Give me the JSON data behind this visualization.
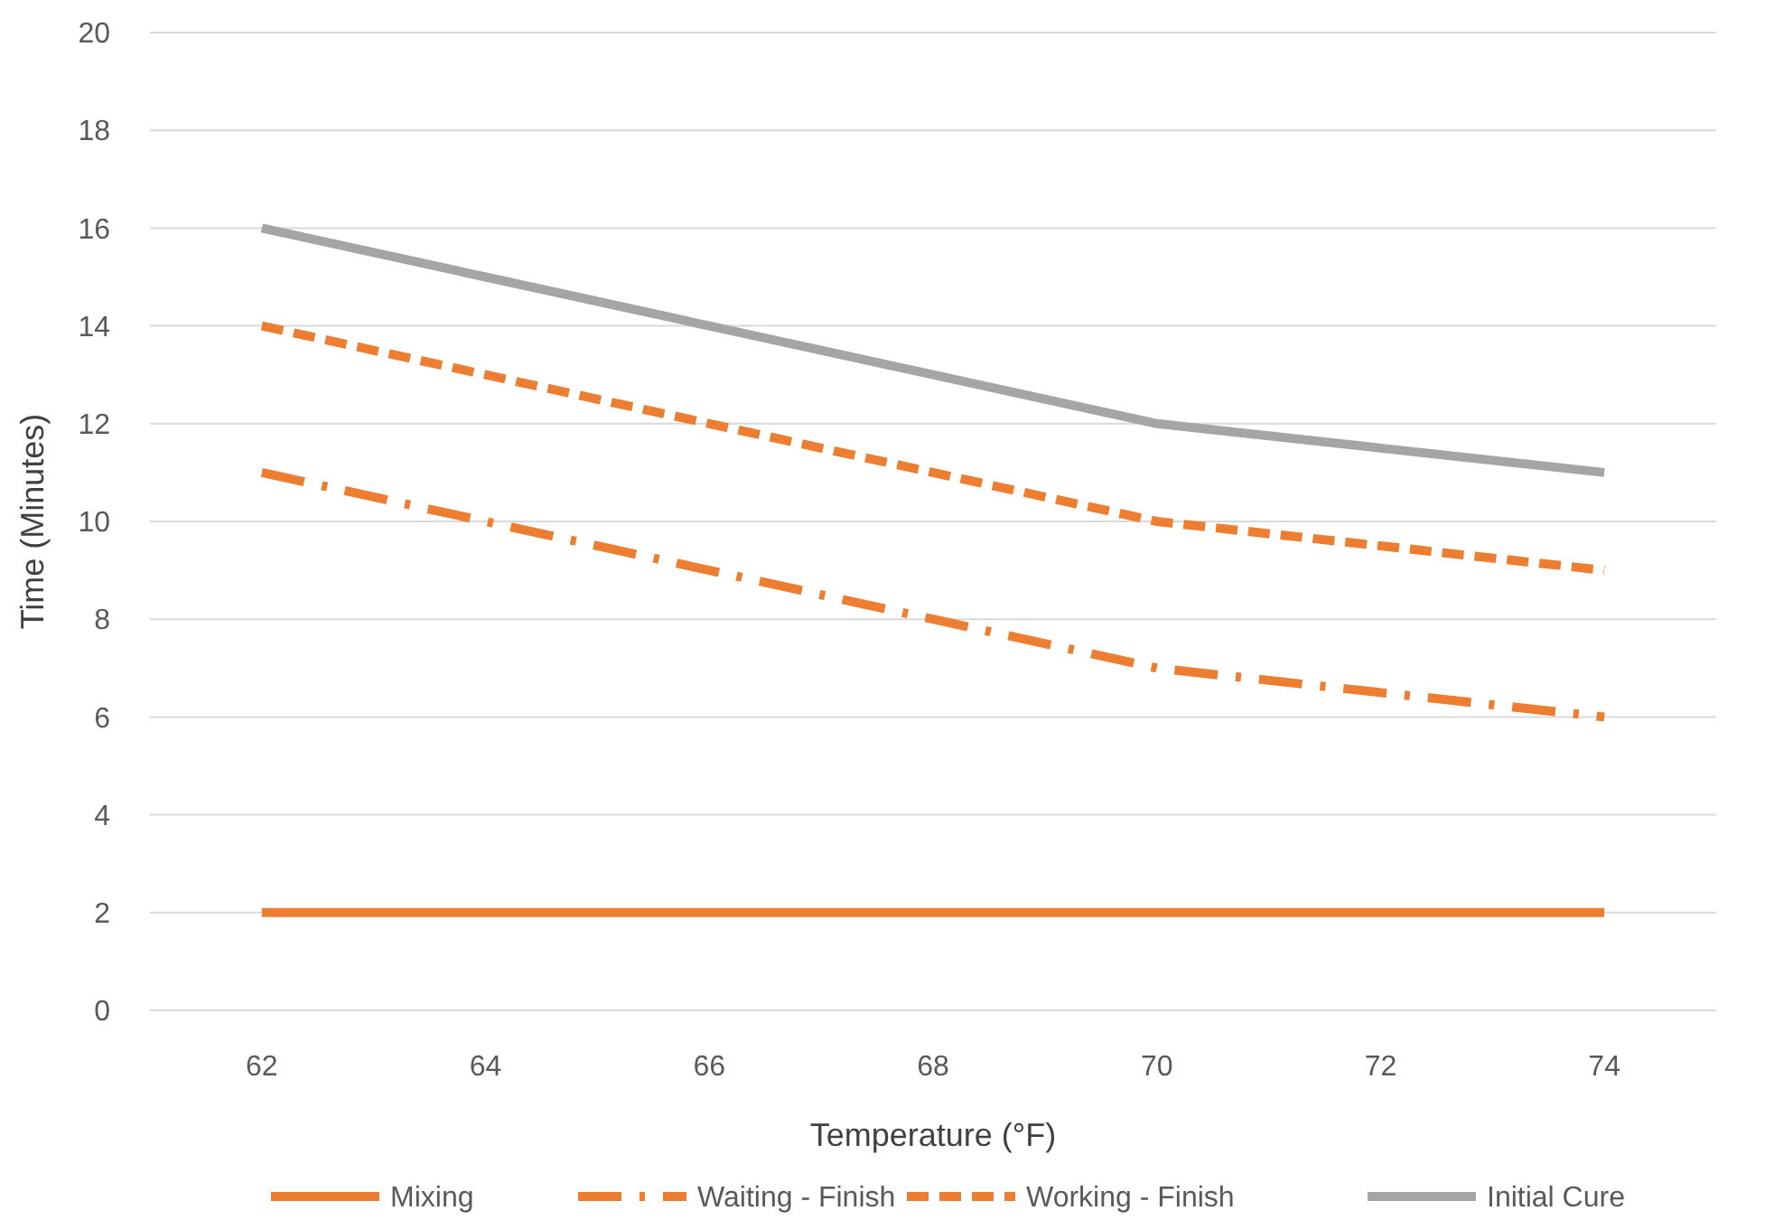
{
  "chart_data": {
    "type": "line",
    "xlabel": "Temperature (°F)",
    "ylabel": "Time (Minutes)",
    "categories": [
      "62",
      "64",
      "66",
      "68",
      "70",
      "72",
      "74"
    ],
    "series": [
      {
        "name": "Mixing",
        "color": "#ed7d31",
        "line_style": "solid",
        "values": [
          2,
          2,
          2,
          2,
          2,
          2,
          2
        ]
      },
      {
        "name": "Waiting - Finish",
        "color": "#ed7d31",
        "line_style": "dashdot",
        "values": [
          11,
          10,
          9,
          8,
          7,
          6.5,
          6
        ]
      },
      {
        "name": "Working - Finish",
        "color": "#ed7d31",
        "line_style": "dashed",
        "values": [
          14,
          13,
          12,
          11,
          10,
          9.5,
          9
        ]
      },
      {
        "name": "Initial Cure",
        "color": "#a5a5a5",
        "line_style": "solid",
        "values": [
          16,
          15,
          14,
          13,
          12,
          11.5,
          11
        ]
      }
    ],
    "ylim": [
      0,
      20
    ],
    "yticks": [
      0,
      2,
      4,
      6,
      8,
      10,
      12,
      14,
      16,
      18,
      20
    ],
    "grid": "y",
    "legend": "bottom",
    "marker": "none"
  }
}
